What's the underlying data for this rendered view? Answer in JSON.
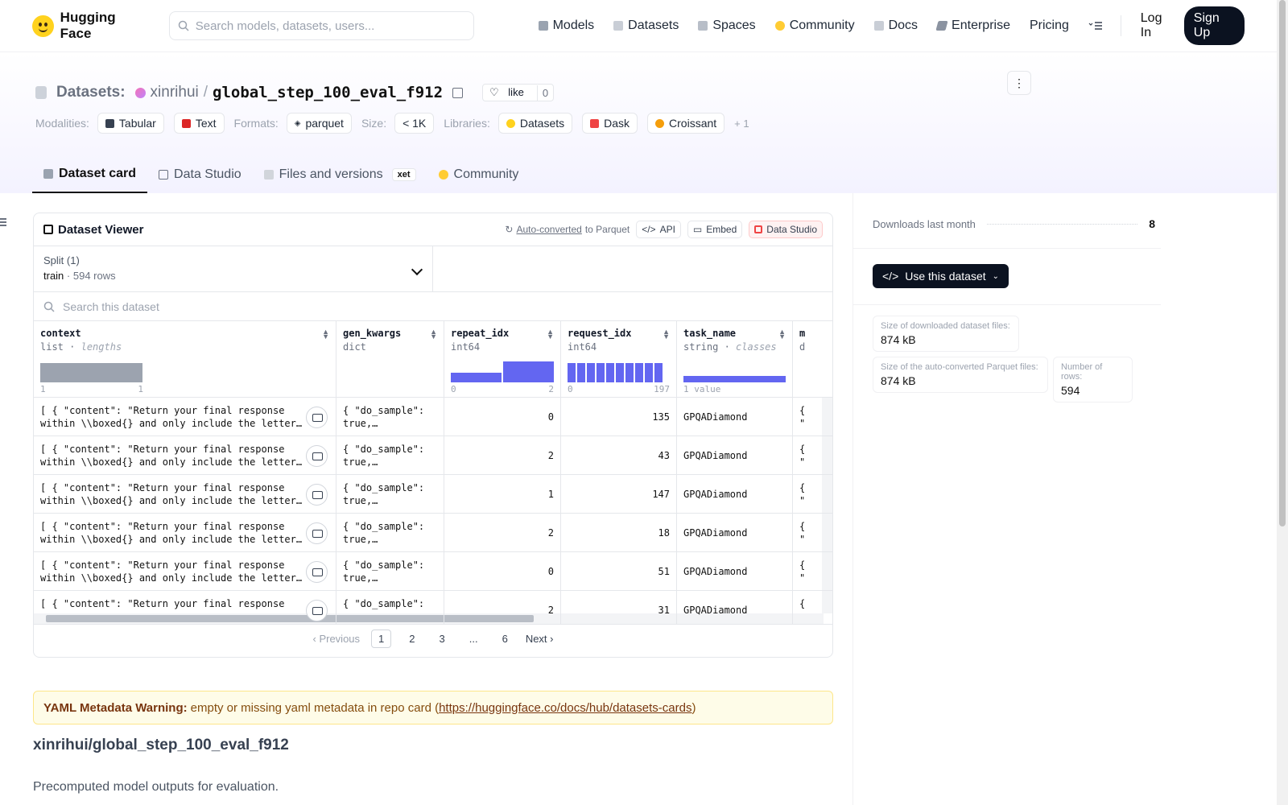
{
  "nav": {
    "brand": "Hugging Face",
    "search_placeholder": "Search models, datasets, users...",
    "links": [
      "Models",
      "Datasets",
      "Spaces",
      "Community",
      "Docs",
      "Enterprise",
      "Pricing"
    ],
    "login": "Log In",
    "signup": "Sign Up"
  },
  "header": {
    "section": "Datasets:",
    "owner": "xinrihui",
    "slash": "/",
    "name": "global_step_100_eval_f912",
    "like_label": "like",
    "like_count": "0",
    "modalities_label": "Modalities:",
    "modalities": [
      "Tabular",
      "Text"
    ],
    "formats_label": "Formats:",
    "formats": [
      "parquet"
    ],
    "size_label": "Size:",
    "size": "< 1K",
    "libraries_label": "Libraries:",
    "libraries": [
      "Datasets",
      "Dask",
      "Croissant"
    ],
    "libraries_more": "+ 1"
  },
  "tabs": [
    "Dataset card",
    "Data Studio",
    "Files and versions",
    "Community"
  ],
  "xet_badge": "xet",
  "viewer": {
    "title": "Dataset Viewer",
    "auto_converted": "Auto-converted",
    "to_parquet": "to Parquet",
    "api": "API",
    "embed": "Embed",
    "data_studio": "Data Studio",
    "split_label": "Split (1)",
    "split_name": "train",
    "split_rows": "594 rows",
    "search_placeholder": "Search this dataset",
    "columns": [
      {
        "name": "context",
        "type": "list",
        "type_extra": "lengths",
        "axis": [
          "1",
          "1"
        ]
      },
      {
        "name": "gen_kwargs",
        "type": "dict",
        "type_extra": "",
        "axis": [
          "",
          ""
        ]
      },
      {
        "name": "repeat_idx",
        "type": "int64",
        "type_extra": "",
        "axis": [
          "0",
          "2"
        ]
      },
      {
        "name": "request_idx",
        "type": "int64",
        "type_extra": "",
        "axis": [
          "0",
          "197"
        ]
      },
      {
        "name": "task_name",
        "type": "string",
        "type_extra": "classes",
        "axis": [
          "1 value",
          ""
        ]
      },
      {
        "name": "m",
        "type": "d",
        "type_extra": "",
        "axis": [
          "",
          ""
        ]
      }
    ],
    "rows": [
      {
        "context": "[ { \"content\": \"Return your final response\nwithin \\\\boxed{} and only include the letter…",
        "gen_kwargs": "{ \"do_sample\":\ntrue,…",
        "repeat_idx": "0",
        "request_idx": "135",
        "task_name": "GPQADiamond",
        "m": "{\n\""
      },
      {
        "context": "[ { \"content\": \"Return your final response\nwithin \\\\boxed{} and only include the letter…",
        "gen_kwargs": "{ \"do_sample\":\ntrue,…",
        "repeat_idx": "2",
        "request_idx": "43",
        "task_name": "GPQADiamond",
        "m": "{\n\""
      },
      {
        "context": "[ { \"content\": \"Return your final response\nwithin \\\\boxed{} and only include the letter…",
        "gen_kwargs": "{ \"do_sample\":\ntrue,…",
        "repeat_idx": "1",
        "request_idx": "147",
        "task_name": "GPQADiamond",
        "m": "{\n\""
      },
      {
        "context": "[ { \"content\": \"Return your final response\nwithin \\\\boxed{} and only include the letter…",
        "gen_kwargs": "{ \"do_sample\":\ntrue,…",
        "repeat_idx": "2",
        "request_idx": "18",
        "task_name": "GPQADiamond",
        "m": "{\n\""
      },
      {
        "context": "[ { \"content\": \"Return your final response\nwithin \\\\boxed{} and only include the letter…",
        "gen_kwargs": "{ \"do_sample\":\ntrue,…",
        "repeat_idx": "0",
        "request_idx": "51",
        "task_name": "GPQADiamond",
        "m": "{\n\""
      },
      {
        "context": "[ { \"content\": \"Return your final response",
        "gen_kwargs": "{ \"do_sample\":",
        "repeat_idx": "2",
        "request_idx": "31",
        "task_name": "GPQADiamond",
        "m": "{"
      }
    ],
    "pager": {
      "prev": "Previous",
      "pages": [
        "1",
        "2",
        "3",
        "...",
        "6"
      ],
      "next": "Next"
    }
  },
  "warning": {
    "bold": "YAML Metadata Warning:",
    "text": "empty or missing yaml metadata in repo card (",
    "link": "https://huggingface.co/docs/hub/datasets-cards",
    "close": ")"
  },
  "readme": {
    "heading": "xinrihui/global_step_100_eval_f912",
    "paragraph": "Precomputed model outputs for evaluation."
  },
  "sidebar": {
    "downloads_label": "Downloads last month",
    "downloads_value": "8",
    "use_button": "Use this dataset",
    "stats": [
      {
        "k": "Size of downloaded dataset files:",
        "v": "874 kB"
      },
      {
        "k": "Size of the auto-converted Parquet files:",
        "v": "874 kB"
      },
      {
        "k": "Number of rows:",
        "v": "594"
      }
    ]
  },
  "colors": {
    "accent": "#6366f1",
    "dark_button": "#0b1220",
    "warning_bg": "#fefce8"
  }
}
